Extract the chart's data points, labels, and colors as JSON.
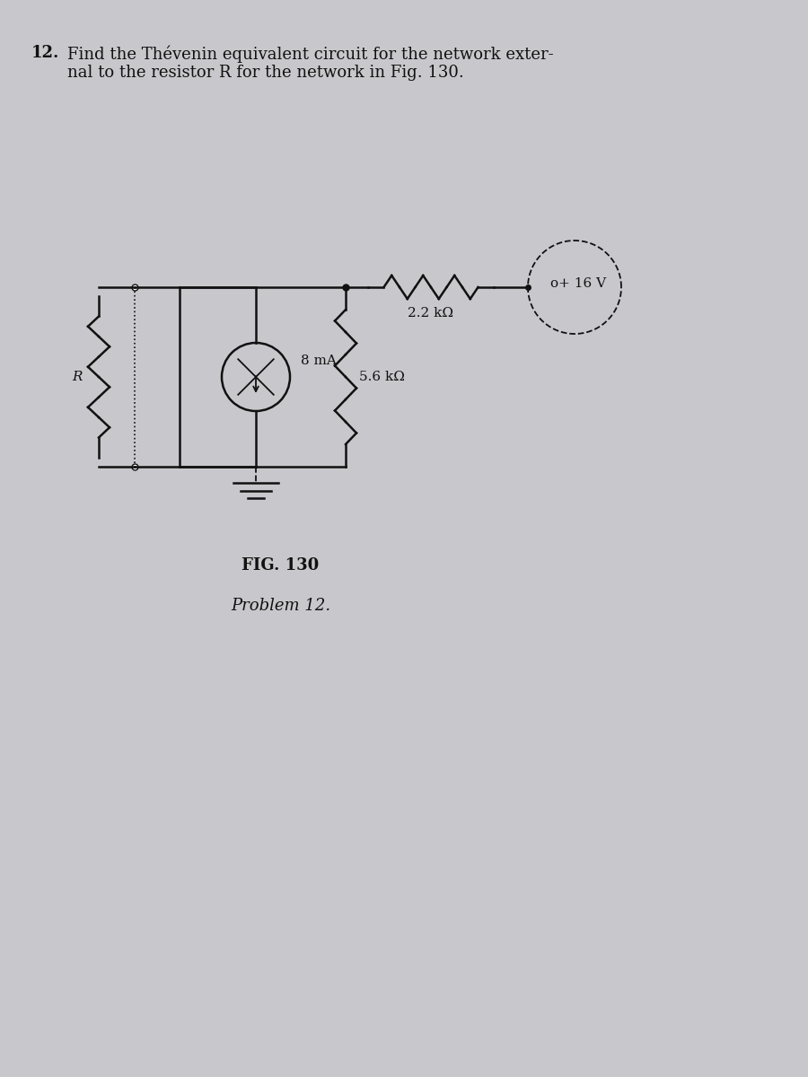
{
  "title_number": "12.",
  "title_text": "Find the Thévenin equivalent circuit for the network exter-\nnal to the resistor R for the network in Fig. 130.",
  "fig_label": "FIG. 130",
  "fig_sublabel": "Problem 12.",
  "voltage_label": "o+ 16 V",
  "resistor1_label": "2.2 kΩ",
  "resistor2_label": "5.6 kΩ",
  "current_label": "8 mA",
  "R_label": "R",
  "bg_color": "#c8c8cc",
  "line_color": "#111111",
  "text_color": "#111111"
}
